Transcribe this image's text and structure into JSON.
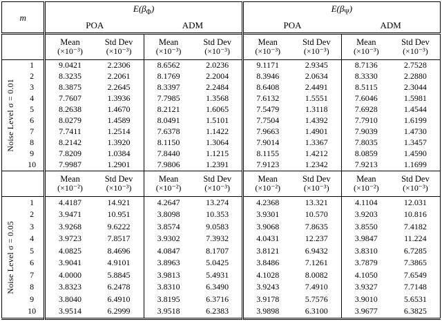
{
  "header": {
    "m": "m",
    "groups": [
      {
        "prefix": "E(β",
        "sub": "Φ",
        "suffix": ")",
        "methods": [
          "POA",
          "ADM"
        ]
      },
      {
        "prefix": "E(β",
        "sub": "Ψ",
        "suffix": ")",
        "methods": [
          "POA",
          "ADM"
        ]
      }
    ]
  },
  "stat_header": {
    "mean": "Mean",
    "std": "Std Dev"
  },
  "sections": [
    {
      "label": "Noise Level σ = 0.01",
      "units": [
        "(×10⁻³)",
        "(×10⁻³)",
        "(×10⁻³)",
        "(×10⁻³)",
        "(×10⁻³)",
        "(×10⁻³)",
        "(×10⁻³)",
        "(×10⁻³)"
      ],
      "rows": [
        {
          "m": "1",
          "values": [
            "9.0421",
            "2.2306",
            "8.6562",
            "2.0236",
            "9.1171",
            "2.9345",
            "8.7136",
            "2.7528"
          ]
        },
        {
          "m": "2",
          "values": [
            "8.3235",
            "2.2061",
            "8.1769",
            "2.2004",
            "8.3946",
            "2.0634",
            "8.3330",
            "2.2880"
          ]
        },
        {
          "m": "3",
          "values": [
            "8.3875",
            "2.2645",
            "8.3397",
            "2.2484",
            "8.6408",
            "2.4491",
            "8.5115",
            "2.3044"
          ]
        },
        {
          "m": "4",
          "values": [
            "7.7607",
            "1.3936",
            "7.7985",
            "1.3568",
            "7.6132",
            "1.5551",
            "7.6046",
            "1.5981"
          ]
        },
        {
          "m": "5",
          "values": [
            "8.2638",
            "1.4670",
            "8.2121",
            "1.6065",
            "7.5479",
            "1.3118",
            "7.6928",
            "1.4544"
          ]
        },
        {
          "m": "6",
          "values": [
            "8.0279",
            "1.4589",
            "8.0491",
            "1.5101",
            "7.7504",
            "1.4392",
            "7.7910",
            "1.6199"
          ]
        },
        {
          "m": "7",
          "values": [
            "7.7411",
            "1.2514",
            "7.6378",
            "1.1422",
            "7.9663",
            "1.4901",
            "7.9039",
            "1.4730"
          ]
        },
        {
          "m": "8",
          "values": [
            "8.2142",
            "1.3920",
            "8.1150",
            "1.3064",
            "7.9014",
            "1.3367",
            "7.8035",
            "1.3457"
          ]
        },
        {
          "m": "9",
          "values": [
            "7.8209",
            "1.0384",
            "7.8440",
            "1.1215",
            "8.1155",
            "1.4212",
            "8.0859",
            "1.4590"
          ]
        },
        {
          "m": "10",
          "values": [
            "7.9987",
            "1.2901",
            "7.9806",
            "1.2391",
            "7.9123",
            "1.2342",
            "7.9213",
            "1.1699"
          ]
        }
      ]
    },
    {
      "label": "Noise Level σ = 0.05",
      "units": [
        "(×10⁻²)",
        "(×10⁻³)",
        "(×10⁻²)",
        "(×10⁻³)",
        "(×10⁻²)",
        "(×10⁻³)",
        "(×10⁻²)",
        "(×10⁻³)"
      ],
      "rows": [
        {
          "m": "1",
          "values": [
            "4.4187",
            "14.921",
            "4.2647",
            "13.274",
            "4.2368",
            "13.321",
            "4.1104",
            "12.031"
          ]
        },
        {
          "m": "2",
          "values": [
            "3.9471",
            "10.951",
            "3.8098",
            "10.353",
            "3.9301",
            "10.570",
            "3.9203",
            "10.816"
          ]
        },
        {
          "m": "3",
          "values": [
            "3.9268",
            "9.6222",
            "3.8574",
            "9.0583",
            "3.9068",
            "7.8635",
            "3.8550",
            "7.4182"
          ]
        },
        {
          "m": "4",
          "values": [
            "3.9723",
            "7.8517",
            "3.9302",
            "7.3932",
            "4.0431",
            "12.237",
            "3.9847",
            "11.224"
          ]
        },
        {
          "m": "5",
          "values": [
            "4.0825",
            "8.4696",
            "4.0847",
            "8.1707",
            "3.8121",
            "6.9432",
            "3.8310",
            "6.7285"
          ]
        },
        {
          "m": "6",
          "values": [
            "3.9041",
            "4.9101",
            "3.8963",
            "5.0425",
            "3.8486",
            "7.1261",
            "3.7879",
            "7.3865"
          ]
        },
        {
          "m": "7",
          "values": [
            "4.0000",
            "5.8845",
            "3.9813",
            "5.4931",
            "4.1028",
            "8.0082",
            "4.1050",
            "7.6549"
          ]
        },
        {
          "m": "8",
          "values": [
            "3.8323",
            "6.2478",
            "3.8310",
            "6.3490",
            "3.9243",
            "7.4910",
            "3.9327",
            "7.7148"
          ]
        },
        {
          "m": "9",
          "values": [
            "3.8040",
            "6.4910",
            "3.8195",
            "6.3716",
            "3.9178",
            "5.7576",
            "3.9010",
            "5.6531"
          ]
        },
        {
          "m": "10",
          "values": [
            "3.9514",
            "6.2999",
            "3.9518",
            "6.2383",
            "3.9898",
            "6.3100",
            "3.9677",
            "6.3825"
          ]
        }
      ]
    }
  ]
}
